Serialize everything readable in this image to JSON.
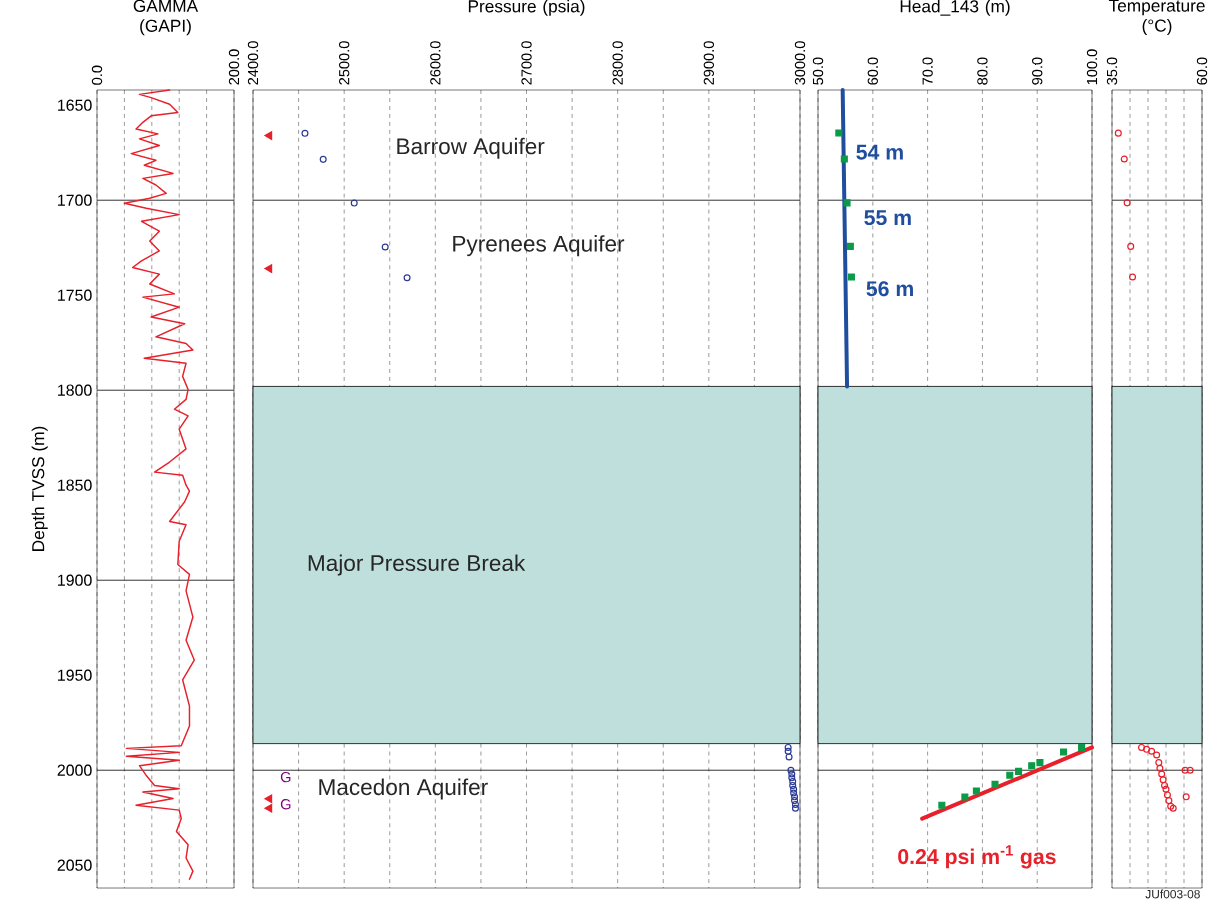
{
  "chart_data": [
    {
      "type": "line",
      "title": "GAMMA (GAPI)",
      "ylabel": "Depth TVSS (m)",
      "xlim": [
        0,
        200
      ],
      "ylim": [
        2062,
        1642
      ],
      "xticks": [
        {
          "value": 0,
          "label": "0.0"
        },
        {
          "value": 40,
          "label": null
        },
        {
          "value": 80,
          "label": null
        },
        {
          "value": 120,
          "label": null
        },
        {
          "value": 160,
          "label": null
        },
        {
          "value": 200,
          "label": "200.0"
        }
      ],
      "yticks": [
        1650,
        1700,
        1750,
        1800,
        1850,
        1900,
        1950,
        2000,
        2050
      ],
      "grid": "x",
      "ref_lines": [
        {
          "axis": "y",
          "value": 1700
        },
        {
          "axis": "y",
          "value": 1800
        },
        {
          "axis": "y",
          "value": 1900
        },
        {
          "axis": "y",
          "value": 2000
        }
      ],
      "series": [
        {
          "color": "#e8202a",
          "x": [
            106,
            62,
            79,
            106,
            118,
            79,
            67,
            57,
            89,
            62,
            91,
            50,
            86,
            69,
            111,
            67,
            86,
            101,
            77,
            40,
            72,
            120,
            65,
            91,
            77,
            91,
            65,
            52,
            91,
            77,
            113,
            67,
            120,
            79,
            128,
            86,
            130,
            140,
            69,
            130,
            125,
            133,
            130,
            113,
            133,
            120,
            130,
            106,
            84,
            125,
            130,
            135,
            128,
            106,
            130,
            120,
            118,
            135,
            130,
            140,
            130,
            142,
            125,
            135,
            135,
            123,
            43,
            120,
            43,
            120,
            62,
            72,
            84,
            120,
            67,
            111,
            57,
            120,
            123,
            116,
            133,
            130,
            140,
            135
          ],
          "values": [
            1642,
            1644.3,
            1646,
            1649.5,
            1653.8,
            1655.6,
            1659,
            1662.5,
            1665.1,
            1667.7,
            1671.2,
            1675.5,
            1679,
            1681.6,
            1685.9,
            1688.5,
            1692,
            1696.4,
            1699,
            1701.6,
            1704.2,
            1707.6,
            1711.1,
            1716.3,
            1721.5,
            1726.7,
            1731.9,
            1735.4,
            1738.9,
            1744.1,
            1749.3,
            1751,
            1756.3,
            1761.5,
            1765,
            1771.9,
            1775.4,
            1778.8,
            1783.2,
            1785.8,
            1792.7,
            1799.6,
            1804.8,
            1810,
            1813.5,
            1820.5,
            1830.9,
            1837.8,
            1843.1,
            1844.8,
            1850,
            1853.1,
            1858.7,
            1869.1,
            1870.8,
            1879.5,
            1891.7,
            1896.9,
            1905.6,
            1919.4,
            1931.6,
            1942,
            1952.4,
            1966.3,
            1976.7,
            1987.1,
            1988.5,
            1990.6,
            1992.7,
            1994.8,
            1997.6,
            2002.8,
            2008,
            2009.7,
            2011.5,
            2014.9,
            2018.4,
            2021,
            2025.4,
            2032.3,
            2039.2,
            2046.2,
            2053.1,
            2057.4
          ]
        }
      ]
    },
    {
      "type": "scatter",
      "title": "Pressure (psia)",
      "tick_labels": "x",
      "xlim": [
        2400,
        3000
      ],
      "ylim": [
        2062,
        1642
      ],
      "xticks": [
        {
          "value": 2400,
          "label": "2400.0"
        },
        {
          "value": 2450,
          "label": null
        },
        {
          "value": 2500,
          "label": "2500.0"
        },
        {
          "value": 2550,
          "label": null
        },
        {
          "value": 2600,
          "label": "2600.0"
        },
        {
          "value": 2650,
          "label": null
        },
        {
          "value": 2700,
          "label": "2700.0"
        },
        {
          "value": 2750,
          "label": null
        },
        {
          "value": 2800,
          "label": "2800.0"
        },
        {
          "value": 2850,
          "label": null
        },
        {
          "value": 2900,
          "label": "2900.0"
        },
        {
          "value": 2950,
          "label": null
        },
        {
          "value": 3000,
          "label": "3000.0"
        }
      ],
      "grid": "x",
      "ref_lines": [
        {
          "axis": "y",
          "value": 1700
        },
        {
          "axis": "y",
          "value": 2000
        }
      ],
      "bands": [
        {
          "axis": "y",
          "from": 1798,
          "to": 1986,
          "label": "Major Pressure Break",
          "color": "#bfdfdd"
        }
      ],
      "annotations": [
        "Barrow Aquifer",
        "Pyrenees Aquifer",
        "Macedon Aquifer",
        "G",
        "G"
      ],
      "series": [
        {
          "color": "#2b3a97",
          "marker": "circle",
          "x": [
            2457,
            2477,
            2511,
            2545,
            2569,
            2987,
            2987,
            2988,
            2990,
            2991,
            2991,
            2992,
            2992,
            2993,
            2993,
            2994,
            2994,
            2995,
            2995
          ],
          "values": [
            1664.8,
            1678.5,
            1701.5,
            1724.6,
            1740.8,
            1988,
            1990,
            1993,
            2000,
            2002,
            2004,
            2006,
            2008,
            2010,
            2012,
            2014,
            2016,
            2018,
            2020
          ]
        },
        {
          "color": "#e8202a",
          "marker": "triangle",
          "x": [
            2418,
            2418,
            2418,
            2418
          ],
          "values": [
            1666,
            1736,
            2015,
            2020
          ]
        }
      ]
    },
    {
      "type": "scatter",
      "title": "Head_143 (m)",
      "tick_labels": "x",
      "xlim": [
        50,
        100
      ],
      "ylim": [
        2062,
        1642
      ],
      "xticks": [
        {
          "value": 50,
          "label": "50.0"
        },
        {
          "value": 60,
          "label": "60.0"
        },
        {
          "value": 70,
          "label": "70.0"
        },
        {
          "value": 80,
          "label": "80.0"
        },
        {
          "value": 90,
          "label": "90.0"
        },
        {
          "value": 100,
          "label": "100.0"
        }
      ],
      "grid": "x",
      "ref_lines": [
        {
          "axis": "y",
          "value": 1700
        },
        {
          "axis": "y",
          "value": 2000
        }
      ],
      "bands": [
        {
          "axis": "y",
          "from": 1798,
          "to": 1986,
          "color": "#bfdfdd"
        }
      ],
      "annotations": [
        "54 m",
        "55 m",
        "56 m",
        "0.24 psi m$^{-1}$ gas"
      ],
      "series": [
        {
          "type": "line",
          "color": "#1f4e9e",
          "marker": "none",
          "x": [
            54.5,
            55.3
          ],
          "values": [
            1642,
            1798
          ]
        },
        {
          "type": "line",
          "color": "#e8202a",
          "marker": "none",
          "x": [
            69,
            100
          ],
          "values": [
            2025.5,
            1988
          ]
        },
        {
          "color": "#0a9a48",
          "marker": "square",
          "x": [
            53.8,
            54.8,
            55.3,
            55.9,
            56.1,
            72.6,
            76.8,
            78.9,
            82.3,
            85.0,
            86.6,
            89.0,
            90.5,
            94.8,
            98.1
          ],
          "values": [
            1664.6,
            1678.3,
            1701.4,
            1724.3,
            1740.4,
            2018.4,
            2014.1,
            2010.9,
            2007.4,
            2002.6,
            2000.6,
            1997.6,
            1996,
            1990.4,
            1988
          ]
        }
      ]
    },
    {
      "type": "scatter",
      "title": "Temperature (°C)",
      "tick_labels": "x",
      "xlim": [
        35,
        60
      ],
      "ylim": [
        2062,
        1642
      ],
      "xticks": [
        {
          "value": 35,
          "label": "35.0"
        },
        {
          "value": 40,
          "label": null
        },
        {
          "value": 45,
          "label": null
        },
        {
          "value": 50,
          "label": null
        },
        {
          "value": 55,
          "label": null
        },
        {
          "value": 60,
          "label": "60.0"
        }
      ],
      "grid": "x",
      "ref_lines": [
        {
          "axis": "y",
          "value": 1700
        },
        {
          "axis": "y",
          "value": 2000
        }
      ],
      "bands": [
        {
          "axis": "y",
          "from": 1798,
          "to": 1986,
          "color": "#bfdfdd"
        }
      ],
      "annotations": [
        "JUf003-08"
      ],
      "series": [
        {
          "color": "#e8202a",
          "marker": "circle",
          "x": [
            36.75,
            38.4,
            39.2,
            40.2,
            40.7,
            43.2,
            44.6,
            46,
            47.4,
            48,
            48.3,
            48.8,
            49.2,
            49.6,
            50,
            50.4,
            50.8,
            51.3,
            52,
            55.3,
            56.7,
            55.6
          ],
          "values": [
            1664.7,
            1678.3,
            1701.4,
            1724.3,
            1740.4,
            1988,
            1989,
            1990,
            1992,
            1996,
            1999,
            2002,
            2005,
            2008,
            2010,
            2013,
            2016,
            2019,
            2020,
            2000,
            2000,
            2014
          ]
        }
      ]
    }
  ]
}
